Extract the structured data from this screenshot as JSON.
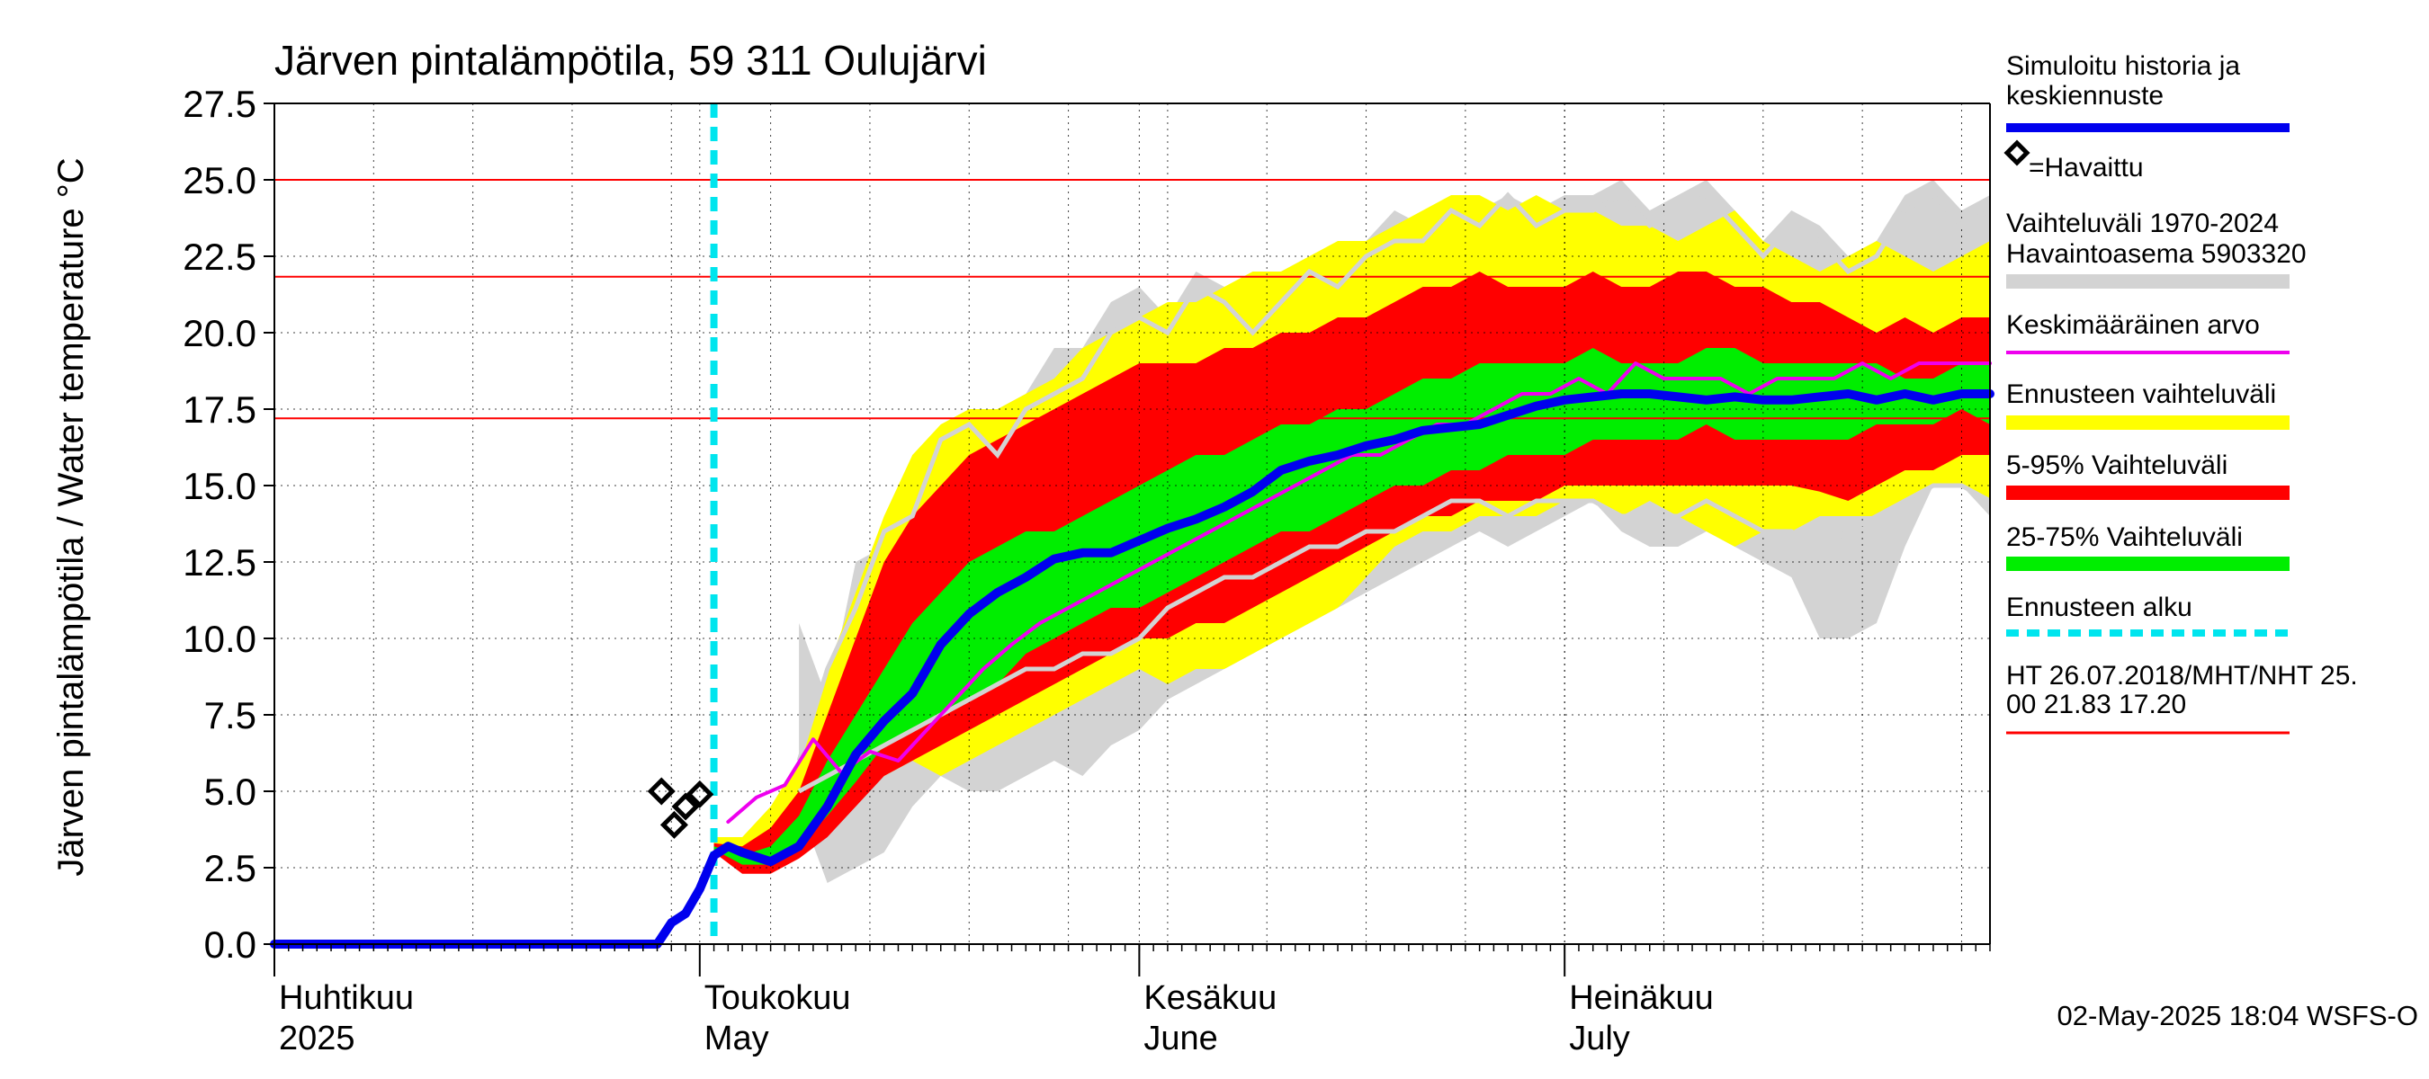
{
  "chart_data": {
    "type": "area",
    "title": "Järven pintalämpötila, 59 311 Oulujärvi",
    "ylabel": "Järven pintalämpötila / Water temperature °C",
    "xlabel": "",
    "ylim": [
      0,
      27.5
    ],
    "y_ticks": [
      "0.0",
      "2.5",
      "5.0",
      "7.5",
      "10.0",
      "12.5",
      "15.0",
      "17.5",
      "20.0",
      "22.5",
      "25.0",
      "27.5"
    ],
    "x_range_days": [
      1,
      122
    ],
    "month_labels": [
      {
        "fi": "Huhtikuu",
        "en": "2025",
        "day": 1
      },
      {
        "fi": "Toukokuu",
        "en": "May",
        "day": 31
      },
      {
        "fi": "Kesäkuu",
        "en": "June",
        "day": 62
      },
      {
        "fi": "Heinäkuu",
        "en": "July",
        "day": 92
      }
    ],
    "grid": true,
    "reference_lines": [
      25.0,
      21.83,
      17.2
    ],
    "forecast_start_day": 32,
    "legend": [
      {
        "label": "Simuloitu historia ja",
        "label2": "keskiennuste",
        "color": "#0000ee",
        "kind": "line"
      },
      {
        "label": "=Havaittu",
        "color": "#000000",
        "kind": "diamond"
      },
      {
        "label": "Vaihteluväli 1970-2024",
        "label2": " Havaintoasema 5903320",
        "color": "#d3d3d3",
        "kind": "band"
      },
      {
        "label": "Keskimääräinen arvo",
        "color": "#ee00ee",
        "kind": "thin"
      },
      {
        "label": "Ennusteen vaihteluväli",
        "color": "#ffff00",
        "kind": "band"
      },
      {
        "label": "5-95% Vaihteluväli",
        "color": "#ff0000",
        "kind": "band"
      },
      {
        "label": "25-75% Vaihteluväli",
        "color": "#00ee00",
        "kind": "band"
      },
      {
        "label": "Ennusteen alku",
        "color": "#00e5ee",
        "kind": "dash"
      },
      {
        "label": "HT 26.07.2018/MHT/NHT 25.",
        "label2": "00 21.83 17.20",
        "color": "#ff0000",
        "kind": "thinred"
      }
    ],
    "footer": "02-May-2025 18:04 WSFS-O",
    "series": [
      {
        "name": "Vaihteluväli 1970-2024",
        "kind": "band",
        "color": "#d3d3d3",
        "x": [
          38,
          40,
          42,
          44,
          46,
          48,
          50,
          52,
          54,
          56,
          58,
          60,
          62,
          64,
          66,
          68,
          70,
          72,
          74,
          76,
          78,
          80,
          82,
          84,
          86,
          88,
          90,
          92,
          94,
          96,
          98,
          100,
          102,
          104,
          106,
          108,
          110,
          112,
          114,
          116,
          118,
          120,
          122
        ],
        "low": [
          4.5,
          2.0,
          2.5,
          3.0,
          4.5,
          5.5,
          5.0,
          5.0,
          5.5,
          6.0,
          5.5,
          6.5,
          7.0,
          8.0,
          8.5,
          9.0,
          9.5,
          10.0,
          10.5,
          11.0,
          11.5,
          12.0,
          12.5,
          13.0,
          13.5,
          13.0,
          13.5,
          14.0,
          14.5,
          13.5,
          13.0,
          13.0,
          13.5,
          13.0,
          12.5,
          12.0,
          10.0,
          10.0,
          10.5,
          13.0,
          15.0,
          15.0,
          14.0
        ],
        "high": [
          10.5,
          8.0,
          12.5,
          13.0,
          15.0,
          16.0,
          17.5,
          17.5,
          18.0,
          19.5,
          19.5,
          21.0,
          21.5,
          20.5,
          22.0,
          21.5,
          20.5,
          22.0,
          22.5,
          22.0,
          23.0,
          24.0,
          23.5,
          24.5,
          24.0,
          24.5,
          24.0,
          24.5,
          24.5,
          25.0,
          24.0,
          24.5,
          25.0,
          24.0,
          23.0,
          24.0,
          23.5,
          22.5,
          23.0,
          24.5,
          25.0,
          24.0,
          24.5
        ]
      },
      {
        "name": "Ennusteen vaihteluväli",
        "kind": "band",
        "color": "#ffff00",
        "x": [
          32,
          34,
          36,
          38,
          40,
          42,
          44,
          46,
          48,
          50,
          52,
          54,
          56,
          58,
          60,
          62,
          64,
          66,
          68,
          70,
          72,
          74,
          76,
          78,
          80,
          82,
          84,
          86,
          88,
          90,
          92,
          94,
          96,
          98,
          100,
          102,
          104,
          106,
          108,
          110,
          112,
          114,
          116,
          118,
          120,
          122
        ],
        "low": [
          3.0,
          2.5,
          2.4,
          3.0,
          4.0,
          5.0,
          5.5,
          6.0,
          5.5,
          6.0,
          6.5,
          7.0,
          7.5,
          8.0,
          8.5,
          9.0,
          8.5,
          9.0,
          9.0,
          9.5,
          10.0,
          10.5,
          11.0,
          12.0,
          13.0,
          13.5,
          13.5,
          14.0,
          14.0,
          14.0,
          14.5,
          14.5,
          14.0,
          14.5,
          14.0,
          13.5,
          13.0,
          13.5,
          13.5,
          14.0,
          14.0,
          14.0,
          14.5,
          15.0,
          15.0,
          14.5
        ],
        "high": [
          3.5,
          3.5,
          4.5,
          6.0,
          9.0,
          11.5,
          14.0,
          16.0,
          17.0,
          17.5,
          17.5,
          18.0,
          18.5,
          19.5,
          20.0,
          20.5,
          21.0,
          21.0,
          21.5,
          22.0,
          22.0,
          22.5,
          23.0,
          23.0,
          23.5,
          24.0,
          24.5,
          24.5,
          24.0,
          24.5,
          24.0,
          24.0,
          23.5,
          23.5,
          23.0,
          23.5,
          24.0,
          23.0,
          22.5,
          22.0,
          22.5,
          23.0,
          22.5,
          22.0,
          22.5,
          23.0
        ]
      },
      {
        "name": "5-95% Vaihteluväli",
        "kind": "band",
        "color": "#ff0000",
        "x": [
          32,
          34,
          36,
          38,
          40,
          42,
          44,
          46,
          48,
          50,
          52,
          54,
          56,
          58,
          60,
          62,
          64,
          66,
          68,
          70,
          72,
          74,
          76,
          78,
          80,
          82,
          84,
          86,
          88,
          90,
          92,
          94,
          96,
          98,
          100,
          102,
          104,
          106,
          108,
          110,
          112,
          114,
          116,
          118,
          120,
          122
        ],
        "low": [
          3.0,
          2.3,
          2.3,
          2.8,
          3.5,
          4.5,
          5.5,
          6.0,
          6.5,
          7.0,
          7.5,
          8.0,
          8.5,
          9.0,
          9.5,
          10.0,
          10.0,
          10.5,
          10.5,
          11.0,
          11.5,
          12.0,
          12.5,
          13.0,
          13.5,
          14.0,
          14.0,
          14.5,
          14.5,
          14.5,
          15.0,
          15.0,
          15.0,
          15.0,
          15.0,
          15.0,
          15.0,
          15.0,
          15.0,
          14.8,
          14.5,
          15.0,
          15.5,
          15.5,
          16.0,
          16.0
        ],
        "high": [
          3.3,
          3.2,
          3.8,
          5.0,
          7.5,
          10.0,
          12.5,
          14.0,
          15.0,
          16.0,
          16.5,
          17.0,
          17.5,
          18.0,
          18.5,
          19.0,
          19.0,
          19.0,
          19.5,
          19.5,
          20.0,
          20.0,
          20.5,
          20.5,
          21.0,
          21.5,
          21.5,
          22.0,
          21.5,
          21.5,
          21.5,
          22.0,
          21.5,
          21.5,
          22.0,
          22.0,
          21.5,
          21.5,
          21.0,
          21.0,
          20.5,
          20.0,
          20.5,
          20.0,
          20.5,
          20.5
        ]
      },
      {
        "name": "25-75% Vaihteluväli",
        "kind": "band",
        "color": "#00ee00",
        "x": [
          32,
          34,
          36,
          38,
          40,
          42,
          44,
          46,
          48,
          50,
          52,
          54,
          56,
          58,
          60,
          62,
          64,
          66,
          68,
          70,
          72,
          74,
          76,
          78,
          80,
          82,
          84,
          86,
          88,
          90,
          92,
          94,
          96,
          98,
          100,
          102,
          104,
          106,
          108,
          110,
          112,
          114,
          116,
          118,
          120,
          122
        ],
        "low": [
          3.1,
          2.6,
          2.6,
          3.2,
          4.2,
          5.3,
          6.5,
          7.0,
          7.5,
          8.0,
          8.5,
          9.5,
          10.0,
          10.5,
          11.0,
          11.0,
          11.5,
          12.0,
          12.5,
          13.0,
          13.5,
          13.5,
          14.0,
          14.5,
          15.0,
          15.0,
          15.5,
          15.5,
          16.0,
          16.0,
          16.0,
          16.5,
          16.5,
          16.5,
          16.5,
          17.0,
          16.5,
          16.5,
          16.5,
          16.5,
          16.5,
          17.0,
          17.0,
          17.0,
          17.5,
          17.0
        ],
        "high": [
          3.2,
          2.9,
          3.2,
          4.2,
          6.0,
          7.5,
          9.0,
          10.5,
          11.5,
          12.5,
          13.0,
          13.5,
          13.5,
          14.0,
          14.5,
          15.0,
          15.5,
          16.0,
          16.0,
          16.5,
          17.0,
          17.0,
          17.5,
          17.5,
          18.0,
          18.5,
          18.5,
          19.0,
          19.0,
          19.0,
          19.0,
          19.5,
          19.0,
          19.0,
          19.0,
          19.5,
          19.5,
          19.0,
          19.0,
          19.0,
          19.0,
          19.0,
          18.5,
          18.5,
          19.0,
          19.0
        ]
      },
      {
        "name": "Vaihteluväli 1970-2024 (rajat)",
        "kind": "line_gray",
        "color": "#d3d3d3",
        "x": [
          38,
          40,
          42,
          44,
          46,
          48,
          50,
          52,
          54,
          56,
          58,
          60,
          62,
          64,
          66,
          68,
          70,
          72,
          74,
          76,
          78,
          80,
          82,
          84,
          86,
          88,
          90,
          92,
          94,
          96,
          98,
          100,
          102,
          104,
          106,
          108,
          110,
          112,
          114,
          116,
          118,
          120,
          122
        ],
        "upper": [
          6.0,
          9.0,
          11.0,
          13.5,
          14.0,
          16.5,
          17.0,
          16.0,
          17.5,
          18.0,
          18.5,
          20.0,
          20.5,
          20.0,
          21.5,
          21.0,
          20.0,
          21.0,
          22.0,
          21.5,
          22.5,
          23.0,
          23.0,
          24.0,
          23.5,
          24.5,
          23.5,
          24.0,
          24.0,
          24.5,
          23.5,
          24.0,
          24.5,
          23.5,
          22.5,
          23.5,
          23.0,
          22.0,
          22.5,
          24.0,
          24.5,
          23.5,
          24.0
        ],
        "lower": [
          5.0,
          5.5,
          6.0,
          6.5,
          7.0,
          7.5,
          8.0,
          8.5,
          9.0,
          9.0,
          9.5,
          9.5,
          10.0,
          11.0,
          11.5,
          12.0,
          12.0,
          12.5,
          13.0,
          13.0,
          13.5,
          13.5,
          14.0,
          14.5,
          14.5,
          14.0,
          14.5,
          14.5,
          14.5,
          14.0,
          14.0,
          14.0,
          14.5,
          14.0,
          13.5,
          13.5,
          13.0,
          13.5,
          14.0,
          14.5,
          15.0,
          15.0,
          14.5
        ]
      },
      {
        "name": "Keskimääräinen arvo",
        "kind": "line",
        "color": "#ee00ee",
        "x": [
          33,
          35,
          37,
          39,
          41,
          43,
          45,
          47,
          49,
          51,
          53,
          55,
          57,
          59,
          61,
          63,
          65,
          67,
          69,
          71,
          73,
          75,
          77,
          79,
          81,
          83,
          85,
          87,
          89,
          91,
          93,
          95,
          97,
          99,
          101,
          103,
          105,
          107,
          109,
          111,
          113,
          115,
          117,
          119,
          121,
          122
        ],
        "values": [
          4.0,
          4.8,
          5.2,
          6.7,
          5.6,
          6.3,
          6.0,
          7.0,
          8.0,
          9.0,
          9.8,
          10.5,
          11.0,
          11.5,
          12.0,
          12.5,
          13.0,
          13.5,
          14.0,
          14.5,
          15.0,
          15.5,
          16.0,
          16.0,
          16.5,
          17.0,
          17.0,
          17.5,
          18.0,
          18.0,
          18.5,
          18.0,
          19.0,
          18.5,
          18.5,
          18.5,
          18.0,
          18.5,
          18.5,
          18.5,
          19.0,
          18.5,
          19.0,
          19.0,
          19.0,
          19.0
        ]
      },
      {
        "name": "Simuloitu historia ja keskiennuste",
        "kind": "line",
        "color": "#0000ee",
        "x": [
          1,
          28,
          29,
          30,
          31,
          32,
          33,
          34,
          36,
          38,
          40,
          42,
          44,
          46,
          48,
          50,
          52,
          54,
          56,
          58,
          60,
          62,
          64,
          66,
          68,
          70,
          72,
          74,
          76,
          78,
          80,
          82,
          84,
          86,
          88,
          90,
          92,
          94,
          96,
          98,
          100,
          102,
          104,
          106,
          108,
          110,
          112,
          114,
          116,
          118,
          120,
          122
        ],
        "values": [
          0.0,
          0.0,
          0.7,
          1.0,
          1.8,
          2.9,
          3.2,
          3.0,
          2.7,
          3.2,
          4.5,
          6.2,
          7.3,
          8.2,
          9.8,
          10.8,
          11.5,
          12.0,
          12.6,
          12.8,
          12.8,
          13.2,
          13.6,
          13.9,
          14.3,
          14.8,
          15.5,
          15.8,
          16.0,
          16.3,
          16.5,
          16.8,
          16.9,
          17.0,
          17.3,
          17.6,
          17.8,
          17.9,
          18.0,
          18.0,
          17.9,
          17.8,
          17.9,
          17.8,
          17.8,
          17.9,
          18.0,
          17.8,
          18.0,
          17.8,
          18.0,
          18.0
        ]
      },
      {
        "name": "Havaittu",
        "kind": "diamond",
        "color": "#000000",
        "x": [
          28.3,
          29.2,
          30.0,
          31.0
        ],
        "values": [
          5.0,
          3.9,
          4.5,
          4.9
        ]
      }
    ]
  }
}
